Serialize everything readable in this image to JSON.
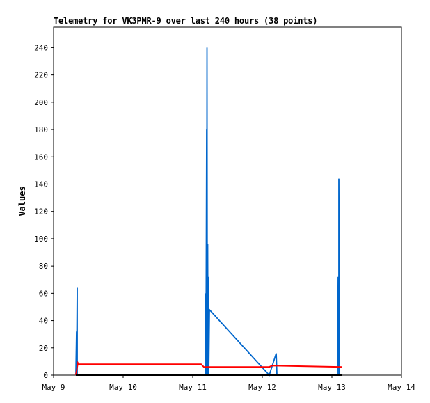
{
  "chart_data": {
    "type": "line",
    "title": "Telemetry for VK3PMR-9 over last 240 hours (38 points)",
    "xlabel": "",
    "ylabel": "Values",
    "x_ticks": [
      "May 9",
      "May 10",
      "May 11",
      "May 12",
      "May 13",
      "May 14"
    ],
    "y_ticks": [
      0,
      20,
      40,
      60,
      80,
      100,
      120,
      140,
      160,
      180,
      200,
      220,
      240
    ],
    "xlim": [
      0,
      5
    ],
    "ylim": [
      0,
      255
    ],
    "grid": false,
    "legend": "none",
    "series": [
      {
        "color": "#0066cc",
        "x": [
          0.32,
          0.33,
          0.33,
          0.34,
          0.34,
          0.35,
          0.35,
          2.18,
          2.185,
          2.19,
          2.2,
          2.2,
          2.205,
          2.21,
          2.21,
          2.215,
          2.22,
          2.225,
          2.23,
          2.24,
          3.1,
          3.2,
          3.21,
          3.22,
          3.22,
          3.23,
          4.08,
          4.09,
          4.1,
          4.1,
          4.11,
          4.115,
          4.12,
          4.13,
          4.15
        ],
        "y": [
          0,
          32,
          0,
          64,
          0,
          0,
          0,
          0,
          60,
          0,
          180,
          0,
          240,
          0,
          0,
          96,
          0,
          72,
          0,
          48,
          0,
          16,
          0,
          0,
          0,
          0,
          0,
          72,
          0,
          144,
          0,
          0,
          0,
          0,
          0
        ]
      },
      {
        "color": "#ff0000",
        "x": [
          0.32,
          0.35,
          0.36,
          2.12,
          2.16,
          3.1,
          3.14,
          4.15
        ],
        "y": [
          0,
          9,
          8,
          8,
          6,
          6,
          7,
          6
        ]
      },
      {
        "color": "#000000",
        "x": [
          0.32,
          4.15
        ],
        "y": [
          0,
          0
        ]
      }
    ]
  }
}
